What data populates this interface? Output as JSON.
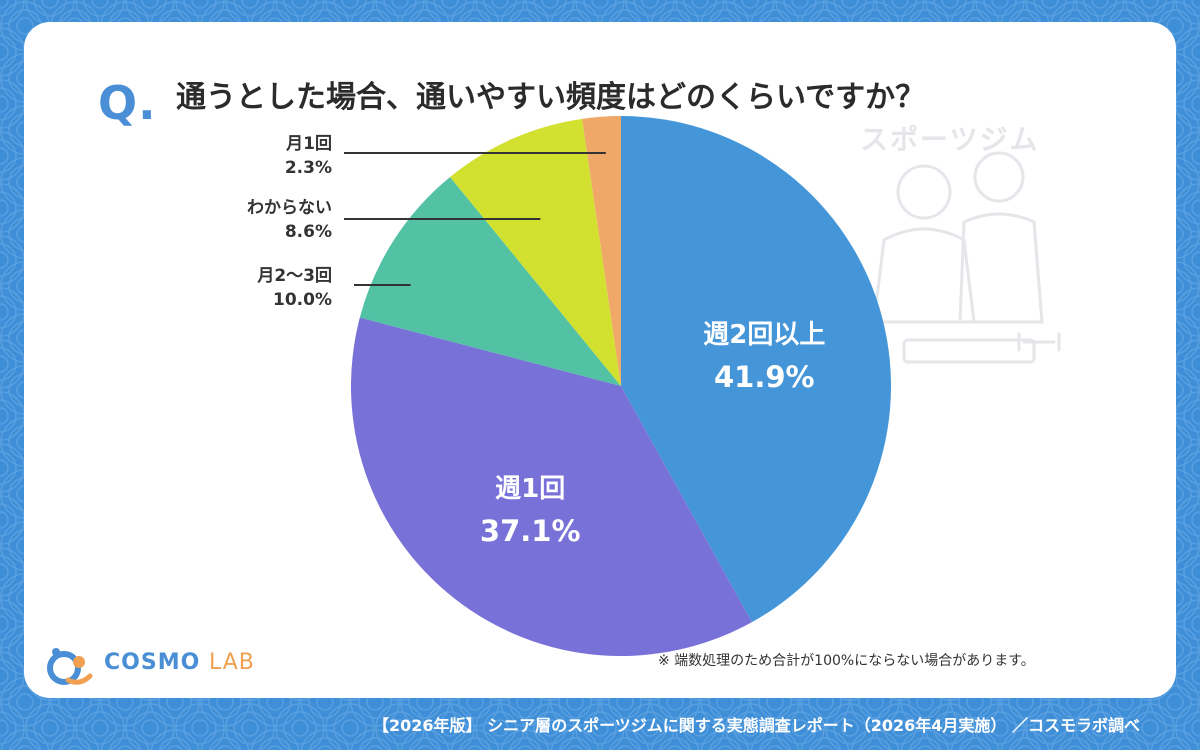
{
  "question": {
    "mark": "Q.",
    "text": "通うとした場合、通いやすい頻度はどのくらいですか？"
  },
  "chart_data": {
    "type": "pie",
    "start_angle_deg": 0,
    "direction": "clockwise",
    "slices": [
      {
        "label": "週2回以上",
        "value": 41.9,
        "display": "41.9%",
        "color": "#4496d8",
        "label_position": "inside"
      },
      {
        "label": "週1回",
        "value": 37.1,
        "display": "37.1%",
        "color": "#7872d8",
        "label_position": "inside"
      },
      {
        "label": "月2〜3回",
        "value": 10.0,
        "display": "10.0%",
        "color": "#52c1a4",
        "label_position": "leader-line"
      },
      {
        "label": "わからない",
        "value": 8.6,
        "display": "8.6%",
        "color": "#d2e030",
        "label_position": "leader-line"
      },
      {
        "label": "月1回",
        "value": 2.3,
        "display": "2.3%",
        "color": "#f0a868",
        "label_position": "leader-line"
      }
    ]
  },
  "labels": {
    "monthly1": {
      "name": "月1回",
      "value": "2.3%"
    },
    "unknown": {
      "name": "わからない",
      "value": "8.6%"
    },
    "monthly23": {
      "name": "月2〜3回",
      "value": "10.0%"
    },
    "twice": {
      "name": "週2回以上",
      "value": "41.9%"
    },
    "once": {
      "name": "週1回",
      "value": "37.1%"
    }
  },
  "note": "※ 端数処理のため合計が100%にならない場合があります。",
  "logo": {
    "main": "COSMO",
    "sub": "LAB"
  },
  "footer": "【2026年版】 シニア層のスポーツジムに関する実態調査レポート（2026年4月実施） ／コスモラボ調べ",
  "illustration": {
    "caption": "スポーツジム",
    "icon": "gym-people-illustration"
  },
  "colors": {
    "background": "#3f8fd8",
    "accent": "#4a8fd6",
    "card": "#ffffff"
  }
}
